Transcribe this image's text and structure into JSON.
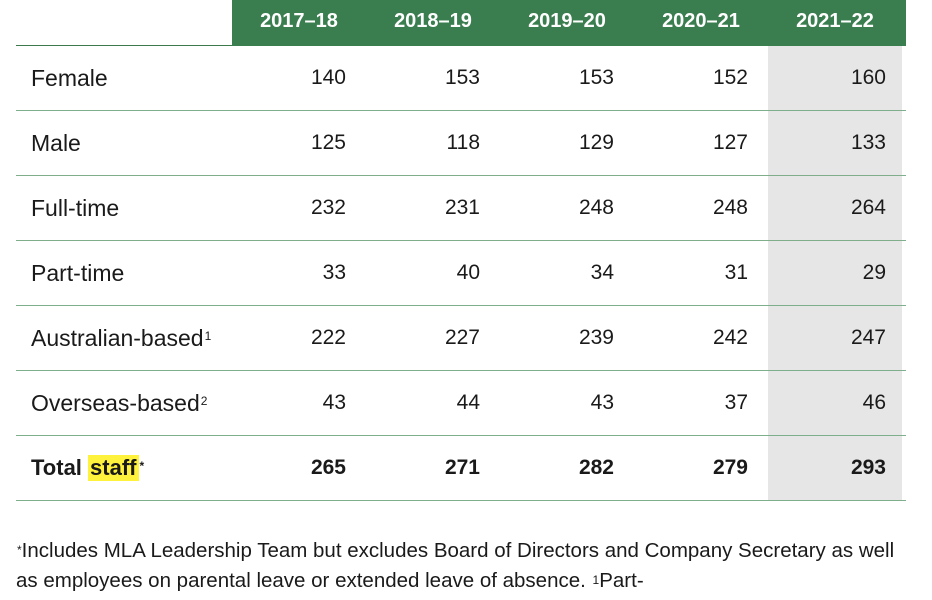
{
  "years": [
    "2017–18",
    "2018–19",
    "2019–20",
    "2020–21",
    "2021–22"
  ],
  "rows": [
    {
      "label": "Female",
      "sup": "",
      "values": [
        "140",
        "153",
        "153",
        "152",
        "160"
      ]
    },
    {
      "label": "Male",
      "sup": "",
      "values": [
        "125",
        "118",
        "129",
        "127",
        "133"
      ]
    },
    {
      "label": "Full-time",
      "sup": "",
      "values": [
        "232",
        "231",
        "248",
        "248",
        "264"
      ]
    },
    {
      "label": "Part-time",
      "sup": "",
      "values": [
        "33",
        "40",
        "34",
        "31",
        "29"
      ]
    },
    {
      "label": "Australian-based",
      "sup": "1",
      "values": [
        "222",
        "227",
        "239",
        "242",
        "247"
      ]
    },
    {
      "label": "Overseas-based",
      "sup": "2",
      "values": [
        "43",
        "44",
        "43",
        "37",
        "46"
      ]
    }
  ],
  "total": {
    "label_part1": "Total",
    "label_highlight": "staff",
    "sup": "*",
    "values": [
      "265",
      "271",
      "282",
      "279",
      "293"
    ]
  },
  "footnote": {
    "star": "*",
    "text1": "Includes MLA Leadership Team but excludes Board of Directors and Company Secretary as well as employees on parental leave or extended leave of absence. ",
    "sup1": "1",
    "text2": "Part-"
  },
  "colors": {
    "header_green": "#3a7d4f",
    "last_col_shade": "#e6e6e6",
    "highlight": "#fff23d"
  }
}
